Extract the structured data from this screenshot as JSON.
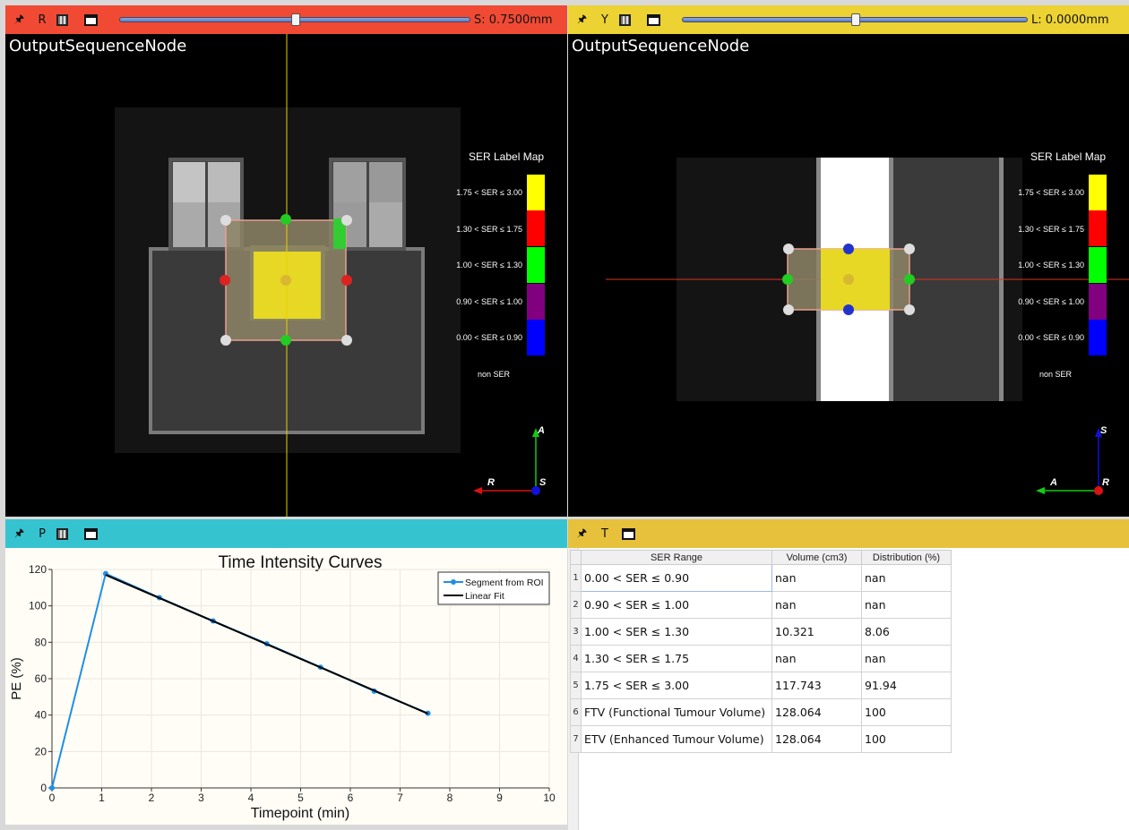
{
  "views": {
    "red": {
      "label": "R",
      "slider_value": 0.5,
      "readout": "S: 0.7500mm",
      "title": "OutputSequenceNode",
      "bar_color": "#f04a34"
    },
    "yellow": {
      "label": "Y",
      "slider_value": 0.5,
      "readout": "L: 0.0000mm",
      "title": "OutputSequenceNode",
      "bar_color": "#ecd233"
    }
  },
  "legend": {
    "title": "SER Label Map",
    "items": [
      {
        "label": "1.75 < SER ≤ 3.00",
        "color": "#ffff00"
      },
      {
        "label": "1.30 < SER ≤ 1.75",
        "color": "#ff0000"
      },
      {
        "label": "1.00 < SER ≤ 1.30",
        "color": "#00ff00"
      },
      {
        "label": "0.90 < SER ≤ 1.00",
        "color": "#800080"
      },
      {
        "label": "0.00 < SER ≤ 0.90",
        "color": "#0000ff"
      }
    ],
    "non": "non SER"
  },
  "orient_red": {
    "up": "A",
    "left": "R",
    "center": "S"
  },
  "orient_yellow": {
    "up": "S",
    "left": "A",
    "center": "R"
  },
  "plot_bar": {
    "label": "P",
    "color": "#35c3cf"
  },
  "table_bar": {
    "label": "T",
    "color": "#e7c13c"
  },
  "chart_data": {
    "type": "line",
    "title": "Time Intensity Curves",
    "xlabel": "Timepoint (min)",
    "ylabel": "PE (%)",
    "xlim": [
      0,
      10
    ],
    "ylim": [
      0,
      120
    ],
    "xticks": [
      "0",
      "1",
      "2",
      "3",
      "4",
      "5",
      "6",
      "7",
      "8",
      "9",
      "10"
    ],
    "yticks": [
      "0",
      "20",
      "40",
      "60",
      "80",
      "100",
      "120"
    ],
    "legend_position": "top-right",
    "series": [
      {
        "name": "Segment from ROI",
        "color": "#1f8fe6",
        "x": [
          0,
          1.08,
          2.16,
          3.24,
          4.32,
          5.4,
          6.48,
          7.56
        ],
        "y": [
          0,
          117.7,
          104.5,
          91.7,
          79.2,
          66.3,
          53.2,
          41.0
        ]
      },
      {
        "name": "Linear Fit",
        "color": "#000000",
        "x": [
          1.08,
          7.56
        ],
        "y": [
          117.0,
          40.8
        ]
      }
    ]
  },
  "table": {
    "headers": [
      "SER Range",
      "Volume (cm3)",
      "Distribution (%)"
    ],
    "rows": [
      {
        "n": "1",
        "range": "0.00 < SER ≤ 0.90",
        "volume": "nan",
        "dist": "nan"
      },
      {
        "n": "2",
        "range": "0.90 < SER ≤ 1.00",
        "volume": "nan",
        "dist": "nan"
      },
      {
        "n": "3",
        "range": "1.00 < SER ≤ 1.30",
        "volume": "10.321",
        "dist": "8.06"
      },
      {
        "n": "4",
        "range": "1.30 < SER ≤ 1.75",
        "volume": "nan",
        "dist": "nan"
      },
      {
        "n": "5",
        "range": "1.75 < SER ≤ 3.00",
        "volume": "117.743",
        "dist": "91.94"
      },
      {
        "n": "6",
        "range": "FTV (Functional Tumour Volume)",
        "volume": "128.064",
        "dist": "100"
      },
      {
        "n": "7",
        "range": "ETV (Enhanced Tumour Volume)",
        "volume": "128.064",
        "dist": "100"
      }
    ]
  }
}
